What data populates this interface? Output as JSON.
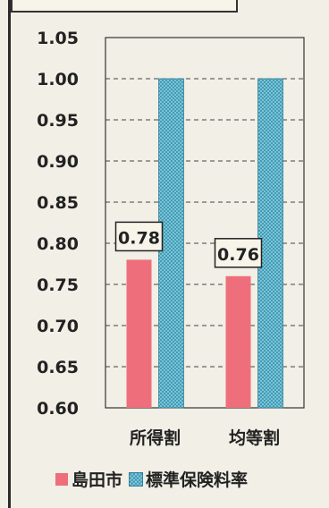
{
  "chart_data": {
    "type": "bar",
    "categories": [
      "所得割",
      "均等割"
    ],
    "series": [
      {
        "name": "島田市",
        "values": [
          0.78,
          0.76
        ],
        "color": "#ee6f7b"
      },
      {
        "name": "標準保険料率",
        "values": [
          1.0,
          1.0
        ],
        "color": "#7fd3e6"
      }
    ],
    "ylim": [
      0.6,
      1.05
    ],
    "yticks": [
      "0.60",
      "0.65",
      "0.70",
      "0.75",
      "0.80",
      "0.85",
      "0.90",
      "0.95",
      "1.00",
      "1.05"
    ],
    "data_labels": [
      "0.78",
      "0.76"
    ],
    "grid": "horizontal dashed",
    "legend_position": "bottom"
  }
}
